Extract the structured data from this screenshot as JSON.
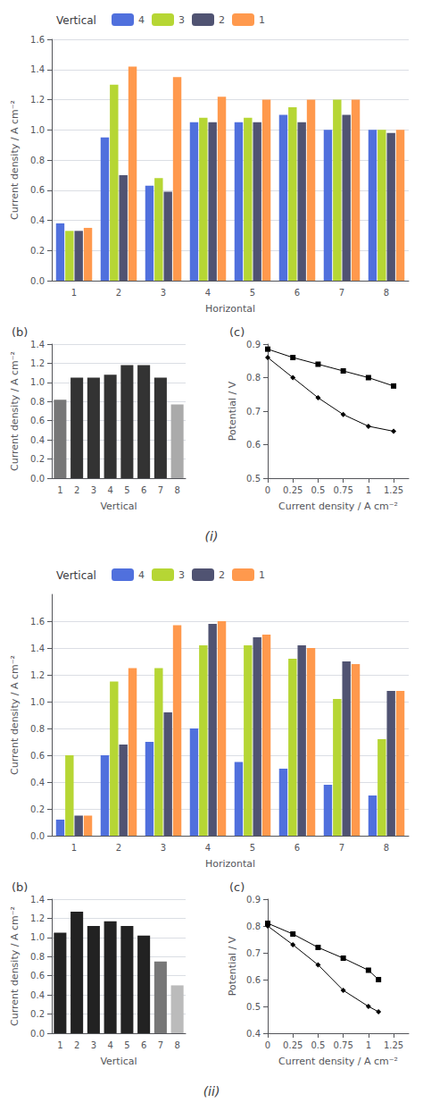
{
  "chart_data": [
    {
      "type": "bar",
      "title": "(i)",
      "annotations": [
        {
          "text": "Vertical"
        }
      ],
      "xlabel": "Horizontal",
      "ylabel": "Current density / A cm⁻²",
      "categories": [
        "1",
        "2",
        "3",
        "4",
        "5",
        "6",
        "7",
        "8"
      ],
      "series": [
        {
          "name": "4",
          "values": [
            0.38,
            0.95,
            0.63,
            1.05,
            1.05,
            1.1,
            1.0,
            1.0
          ]
        },
        {
          "name": "3",
          "values": [
            0.33,
            1.3,
            0.68,
            1.08,
            1.08,
            1.15,
            1.2,
            1.0
          ]
        },
        {
          "name": "2",
          "values": [
            0.33,
            0.7,
            0.59,
            1.05,
            1.05,
            1.05,
            1.1,
            0.98
          ]
        },
        {
          "name": "1",
          "values": [
            0.35,
            1.42,
            1.35,
            1.22,
            1.2,
            1.2,
            1.2,
            1.0
          ]
        }
      ],
      "ylim": [
        0,
        1.6
      ],
      "yticks": [
        {
          "value": 0,
          "label": "0.0"
        },
        0.2,
        0.4,
        0.6,
        0.8,
        {
          "value": 1.0,
          "label": "1.0"
        },
        1.2,
        1.4,
        1.6
      ],
      "grid": true,
      "legend": "top"
    },
    {
      "type": "bar",
      "title": "(b)",
      "xlabel": "Vertical",
      "ylabel": "Current density / A cm⁻²",
      "categories": [
        "1",
        "2",
        "3",
        "4",
        "5",
        "6",
        "7",
        "8"
      ],
      "values": [
        0.82,
        1.05,
        1.05,
        1.08,
        1.18,
        1.18,
        1.05,
        0.77
      ],
      "colors": [
        "#777777",
        "#333333",
        "#333333",
        "#333333",
        "#333333",
        "#333333",
        "#333333",
        "#aaaaaa"
      ],
      "ylim": [
        0,
        1.4
      ],
      "yticks": [
        {
          "value": 0,
          "label": "0.0"
        },
        0.2,
        0.4,
        0.6,
        0.8,
        {
          "value": 1.0,
          "label": "1.0"
        },
        1.2,
        1.4
      ],
      "grid": true
    },
    {
      "type": "line",
      "title": "(c)",
      "xlabel": "Current density / A cm⁻²",
      "ylabel": "Potential / V",
      "x": [
        0.0,
        0.25,
        0.5,
        0.75,
        1.0,
        1.25
      ],
      "series": [
        {
          "values": [
            0.885,
            0.86,
            0.84,
            0.82,
            0.8,
            0.775
          ],
          "color": "#000000",
          "marker": "square",
          "line_style": "solid"
        },
        {
          "values": [
            0.86,
            0.8,
            0.74,
            0.69,
            0.655,
            0.64
          ],
          "color": "#000000",
          "marker": "diamond",
          "line_style": "solid"
        }
      ],
      "xlim": [
        0,
        1.4
      ],
      "xticks": [
        0,
        0.25,
        0.5,
        0.75,
        1,
        1.25
      ],
      "ylim": [
        0.5,
        0.9
      ],
      "yticks": [
        0.5,
        0.6,
        0.7,
        0.8,
        0.9
      ],
      "grid": false
    },
    {
      "type": "bar",
      "title": "(ii)",
      "annotations": [
        {
          "text": "Vertical"
        }
      ],
      "xlabel": "Horizontal",
      "ylabel": "Current density / A cm⁻²",
      "categories": [
        "1",
        "2",
        "3",
        "4",
        "5",
        "6",
        "7",
        "8"
      ],
      "series": [
        {
          "name": "4",
          "values": [
            0.12,
            0.6,
            0.7,
            0.8,
            0.55,
            0.5,
            0.38,
            0.3
          ]
        },
        {
          "name": "3",
          "values": [
            0.6,
            1.15,
            1.25,
            1.42,
            1.42,
            1.32,
            1.02,
            0.72
          ]
        },
        {
          "name": "2",
          "values": [
            0.15,
            0.68,
            0.92,
            1.58,
            1.48,
            1.42,
            1.3,
            1.08
          ]
        },
        {
          "name": "1",
          "values": [
            0.15,
            1.25,
            1.57,
            1.6,
            1.5,
            1.4,
            1.28,
            1.08
          ]
        }
      ],
      "ylim": [
        0,
        1.8
      ],
      "yticks": [
        {
          "value": 0,
          "label": "0.0"
        },
        0.2,
        0.4,
        0.6,
        0.8,
        {
          "value": 1.0,
          "label": "1.0"
        },
        1.2,
        1.4,
        1.6
      ],
      "grid": true,
      "legend": "top"
    },
    {
      "type": "bar",
      "title": "(b)",
      "xlabel": "Vertical",
      "ylabel": "Current density / A cm⁻²",
      "categories": [
        "1",
        "2",
        "3",
        "4",
        "5",
        "6",
        "7",
        "8"
      ],
      "values": [
        1.05,
        1.27,
        1.12,
        1.17,
        1.12,
        1.02,
        0.75,
        0.5
      ],
      "colors": [
        "#222222",
        "#222222",
        "#222222",
        "#222222",
        "#222222",
        "#222222",
        "#777777",
        "#bbbbbb"
      ],
      "ylim": [
        0,
        1.4
      ],
      "yticks": [
        {
          "value": 0,
          "label": "0.0"
        },
        0.2,
        0.4,
        0.6,
        0.8,
        {
          "value": 1.0,
          "label": "1.0"
        },
        1.2,
        1.4
      ],
      "grid": true
    },
    {
      "type": "line",
      "title": "(c)",
      "xlabel": "Current density / A cm⁻²",
      "ylabel": "Potential / V",
      "x": [
        0.0,
        0.25,
        0.5,
        0.75,
        1.0,
        1.1
      ],
      "series": [
        {
          "values": [
            0.81,
            0.77,
            0.72,
            0.68,
            0.635,
            0.6
          ],
          "color": "#000000",
          "marker": "square",
          "line_style": "solid"
        },
        {
          "values": [
            0.8,
            0.73,
            0.655,
            0.56,
            0.5,
            0.48
          ],
          "color": "#000000",
          "marker": "diamond",
          "line_style": "solid"
        }
      ],
      "xlim": [
        0,
        1.4
      ],
      "xticks": [
        0,
        0.25,
        0.5,
        0.75,
        1,
        1.25
      ],
      "ylim": [
        0.4,
        0.9
      ],
      "yticks": [
        0.4,
        0.5,
        0.6,
        0.7,
        0.8,
        0.9
      ],
      "grid": false
    }
  ]
}
